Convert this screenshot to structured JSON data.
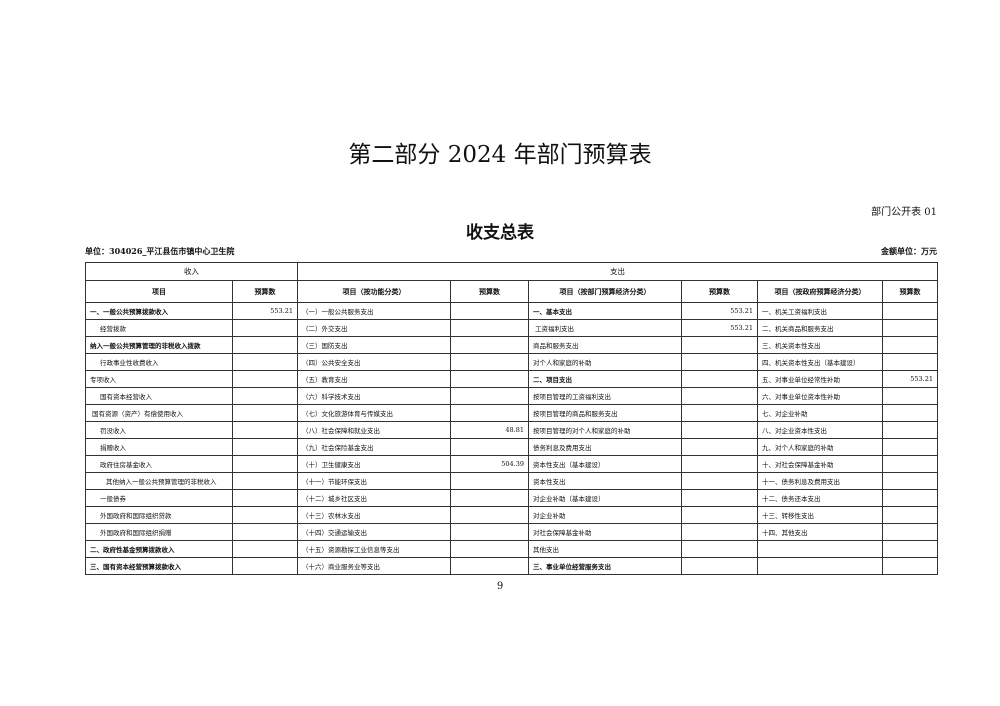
{
  "header": {
    "title": "第二部分 2024 年部门预算表",
    "form_code": "部门公开表 01",
    "table_title": "收支总表",
    "unit": "单位：304026_平江县伍市镇中心卫生院",
    "money_unit": "金额单位：万元"
  },
  "table": {
    "groups": [
      "收入",
      "支出"
    ],
    "columns": [
      "项目",
      "预算数",
      "项目（按功能分类）",
      "预算数",
      "项目（按部门预算经济分类）",
      "预算数",
      "项目（按政府预算经济分类）",
      "预算数"
    ],
    "rows": [
      [
        "一、一般公共预算拨款收入",
        "553.21",
        "（一）一般公共服务支出",
        null,
        "一、基本支出",
        "553.21",
        "一、机关工资福利支出",
        null
      ],
      [
        "经营拨款",
        null,
        "（二）外交支出",
        null,
        "工资福利支出",
        "553.21",
        "二、机关商品和服务支出",
        null
      ],
      [
        "纳入一般公共预算管理的非税收入拨款",
        null,
        "（三）国防支出",
        null,
        "商品和服务支出",
        null,
        "三、机关资本性支出",
        null
      ],
      [
        "行政事业性收费收入",
        null,
        "（四）公共安全支出",
        null,
        "对个人和家庭的补助",
        null,
        "四、机关资本性支出（基本建设）",
        null
      ],
      [
        "专项收入",
        null,
        "（五）教育支出",
        null,
        "二、项目支出",
        null,
        "五、对事业单位经常性补助",
        "553.21"
      ],
      [
        "国有资本经营收入",
        null,
        "（六）科学技术支出",
        null,
        "按项目管理的工资福利支出",
        null,
        "六、对事业单位资本性补助",
        null
      ],
      [
        "国有资源（资产）有偿使用收入",
        null,
        "（七）文化旅游体育与传媒支出",
        null,
        "按项目管理的商品和服务支出",
        null,
        "七、对企业补助",
        null
      ],
      [
        "罚没收入",
        null,
        "（八）社会保障和就业支出",
        "48.81",
        "按项目管理的对个人和家庭的补助",
        null,
        "八、对企业资本性支出",
        null
      ],
      [
        "捐赠收入",
        null,
        "（九）社会保险基金支出",
        null,
        "债务利息及费用支出",
        null,
        "九、对个人和家庭的补助",
        null
      ],
      [
        "政府住房基金收入",
        null,
        "（十）卫生健康支出",
        "504.39",
        "资本性支出（基本建设）",
        null,
        "十、对社会保障基金补助",
        null
      ],
      [
        "其他纳入一般公共预算管理的非税收入",
        null,
        "（十一）节能环保支出",
        null,
        "资本性支出",
        null,
        "十一、债务利息及费用支出",
        null
      ],
      [
        "一般债券",
        null,
        "（十二）城乡社区支出",
        null,
        "对企业补助（基本建设）",
        null,
        "十二、债务还本支出",
        null
      ],
      [
        "外国政府和国际组织贷款",
        null,
        "（十三）农林水支出",
        null,
        "对企业补助",
        null,
        "十三、转移性支出",
        null
      ],
      [
        "外国政府和国际组织捐赠",
        null,
        "（十四）交通运输支出",
        null,
        "对社会保障基金补助",
        null,
        "十四、其他支出",
        null
      ],
      [
        "二、政府性基金预算拨款收入",
        null,
        "（十五）资源勘探工业信息等支出",
        null,
        "其他支出",
        null,
        null,
        null
      ],
      [
        "三、国有资本经营预算拨款收入",
        null,
        "（十六）商业服务业等支出",
        null,
        "三、事业单位经营服务支出",
        null,
        null,
        null
      ]
    ]
  },
  "footer": {
    "page_number": "9"
  }
}
